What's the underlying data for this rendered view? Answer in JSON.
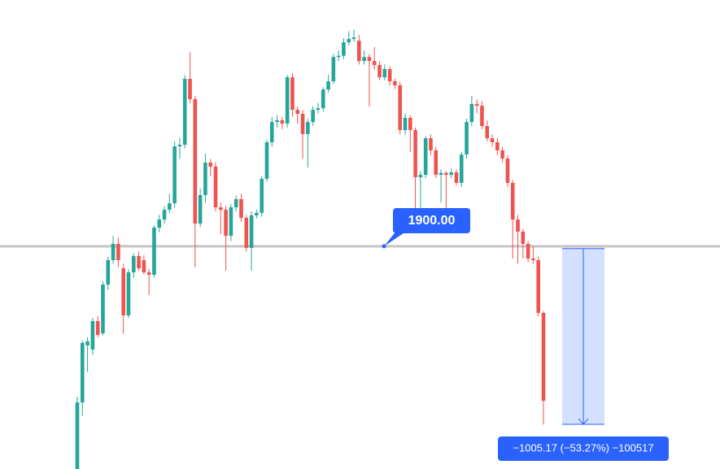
{
  "chart_data": {
    "type": "candlestick",
    "ylim": [
      626,
      3309
    ],
    "colors": {
      "up": "#26a69a",
      "down": "#ef5350"
    },
    "open": [
      626,
      1007,
      1333,
      1309,
      1472,
      1402,
      1681,
      1821,
      1914,
      1774,
      1505,
      1751,
      1844,
      1821,
      1751,
      1737,
      2007,
      2053,
      2109,
      2146,
      2472,
      2481,
      2858,
      2742,
      2030,
      2193,
      2379,
      2356,
      2123,
      2109,
      1960,
      2123,
      2170,
      2063,
      1891,
      2077,
      2091,
      2286,
      2495,
      2611,
      2621,
      2602,
      2867,
      2681,
      2658,
      2542,
      2611,
      2681,
      2690,
      2797,
      2844,
      2983,
      2990,
      3067,
      3086,
      3076,
      2960,
      2983,
      2960,
      2937,
      2867,
      2914,
      2844,
      2821,
      2565,
      2635,
      2565,
      2295,
      2309,
      2518,
      2449,
      2309,
      2320,
      2309,
      2323,
      2263,
      2425,
      2611,
      2714,
      2704,
      2588,
      2518,
      2495,
      2449,
      2402,
      2263,
      2053,
      1984,
      1914,
      1830,
      1821,
      1519
    ],
    "high": [
      1040,
      1360,
      1380,
      1490,
      1500,
      1700,
      1840,
      1960,
      1950,
      1800,
      1770,
      1860,
      1870,
      1850,
      1770,
      2020,
      2080,
      2130,
      2200,
      2500,
      2520,
      2880,
      3010,
      2760,
      2230,
      2430,
      2400,
      2380,
      2150,
      2130,
      2140,
      2190,
      2200,
      2080,
      2100,
      2110,
      2300,
      2510,
      2640,
      2650,
      2640,
      2880,
      2890,
      2700,
      2680,
      2630,
      2700,
      2720,
      2810,
      2880,
      3000,
      3020,
      3090,
      3130,
      3140,
      3110,
      3020,
      3000,
      3040,
      2960,
      2940,
      2930,
      2860,
      2840,
      2660,
      2650,
      2580,
      2330,
      2530,
      2540,
      2470,
      2340,
      2330,
      2345,
      2340,
      2440,
      2630,
      2760,
      2740,
      2730,
      2620,
      2540,
      2520,
      2470,
      2420,
      2280,
      2080,
      2000,
      1930,
      1900,
      1840,
      1530
    ],
    "low": [
      600,
      930,
      1180,
      1280,
      1380,
      1390,
      1650,
      1800,
      1780,
      1400,
      1490,
      1720,
      1760,
      1740,
      1620,
      1720,
      1980,
      2030,
      2090,
      2120,
      2400,
      2460,
      2720,
      1780,
      2010,
      2150,
      2300,
      2100,
      1970,
      1760,
      1930,
      2100,
      2040,
      1870,
      1760,
      2060,
      2070,
      2270,
      2470,
      2580,
      2570,
      2580,
      2640,
      2600,
      2400,
      2350,
      2590,
      2660,
      2670,
      2780,
      2830,
      2960,
      2970,
      3050,
      3070,
      2940,
      2940,
      2700,
      2910,
      2850,
      2850,
      2820,
      2800,
      2540,
      2540,
      2440,
      2090,
      2120,
      2290,
      2420,
      2290,
      2150,
      2100,
      2290,
      2250,
      2240,
      2400,
      2590,
      2660,
      2570,
      2500,
      2470,
      2420,
      2380,
      2240,
      1830,
      1800,
      1830,
      1810,
      1800,
      1500,
      880
    ],
    "close": [
      1007,
      1347,
      1356,
      1472,
      1393,
      1681,
      1821,
      1914,
      1821,
      1505,
      1751,
      1844,
      1774,
      1751,
      1737,
      2007,
      2053,
      2109,
      2146,
      2472,
      2481,
      2858,
      2742,
      2030,
      2193,
      2379,
      2356,
      2123,
      2109,
      1960,
      2123,
      2170,
      2063,
      1891,
      2077,
      2091,
      2286,
      2495,
      2611,
      2621,
      2602,
      2867,
      2681,
      2658,
      2542,
      2611,
      2681,
      2690,
      2797,
      2844,
      2983,
      2990,
      3067,
      3086,
      3095,
      2960,
      2983,
      2960,
      2937,
      2867,
      2914,
      2844,
      2821,
      2565,
      2635,
      2565,
      2295,
      2309,
      2518,
      2449,
      2309,
      2320,
      2309,
      2323,
      2263,
      2425,
      2611,
      2714,
      2704,
      2588,
      2518,
      2495,
      2449,
      2402,
      2263,
      2053,
      1984,
      1914,
      1830,
      1821,
      1519,
      1016
    ],
    "hline": {
      "value": 1900,
      "label": "1900.00",
      "color": "#c4c4c4"
    },
    "measure": {
      "from": 1887.17,
      "to": 882,
      "label": "−1005.17 (−53.27%) −100517",
      "color": "#2962ff"
    }
  }
}
